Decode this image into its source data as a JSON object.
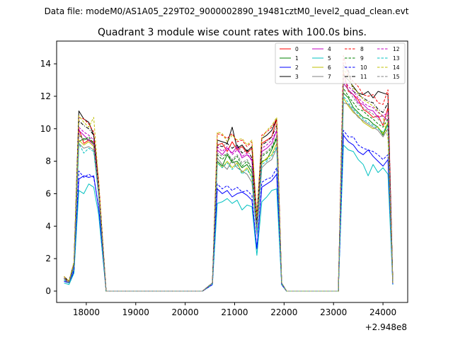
{
  "figure": {
    "suptitle": "Data file: modeM0/AS1A05_229T02_9000002890_19481cztM0_level2_quad_clean.evt"
  },
  "chart_data": {
    "type": "line",
    "title": "Quadrant 3 module wise count rates with 100.0s bins.",
    "xlabel": "",
    "ylabel": "",
    "x_offset_label": "+2.948e8",
    "xlim": [
      17400,
      24500
    ],
    "ylim": [
      -0.7,
      15.4
    ],
    "xticks": [
      18000,
      19000,
      20000,
      21000,
      22000,
      23000,
      24000
    ],
    "xtick_labels": [
      "18000",
      "19000",
      "20000",
      "21000",
      "22000",
      "23000",
      "24000"
    ],
    "yticks": [
      0,
      2,
      4,
      6,
      8,
      10,
      12,
      14
    ],
    "ytick_labels": [
      "0",
      "2",
      "4",
      "6",
      "8",
      "10",
      "12",
      "14"
    ],
    "legend_position": "top-right",
    "x": [
      17550,
      17650,
      17750,
      17850,
      17950,
      18050,
      18150,
      18250,
      18350,
      18450,
      18550,
      18650,
      18750,
      18850,
      18950,
      19050,
      19150,
      19250,
      19350,
      19450,
      19550,
      19650,
      19750,
      19850,
      19950,
      20050,
      20150,
      20250,
      20350,
      20450,
      20550,
      20650,
      20750,
      20850,
      20950,
      21050,
      21150,
      21250,
      21350,
      21450,
      21550,
      21650,
      21750,
      21850,
      21950,
      22050,
      22150,
      22250,
      22350,
      22450,
      22550,
      22650,
      22750,
      22850,
      22950,
      23050,
      23150,
      23250,
      23350,
      23450,
      23550,
      23650,
      23750,
      23850,
      23950,
      24050,
      24150
    ],
    "gap_ranges": [
      [
        18400,
        20350
      ],
      [
        22050,
        23100
      ]
    ],
    "series": [
      {
        "name": "0",
        "color": "#ff0000",
        "dash": "solid",
        "seg1": [
          0.8,
          0.5,
          1.6,
          10.0,
          9.1,
          9.3,
          9.2,
          6.3
        ],
        "seg2": [
          0.5,
          9.0,
          9.1,
          8.6,
          9.2,
          8.7,
          8.9,
          8.5,
          8.8,
          4.2,
          9.1,
          9.3,
          9.5,
          10.6,
          0.5
        ],
        "seg3": [
          0.4,
          13.5,
          12.3,
          12.1,
          11.8,
          11.2,
          11.0,
          10.7,
          10.8,
          10.2,
          11.3,
          0.5
        ]
      },
      {
        "name": "1",
        "color": "#008000",
        "dash": "solid",
        "seg1": [
          0.7,
          0.5,
          1.5,
          9.2,
          9.4,
          9.3,
          9.1,
          6.1
        ],
        "seg2": [
          0.5,
          8.0,
          7.7,
          8.4,
          7.9,
          8.0,
          7.6,
          7.8,
          7.3,
          3.9,
          8.0,
          8.1,
          8.7,
          9.4,
          0.5
        ],
        "seg3": [
          0.3,
          12.2,
          11.9,
          11.3,
          11.0,
          10.7,
          10.6,
          10.3,
          10.1,
          9.6,
          10.3,
          0.5
        ]
      },
      {
        "name": "2",
        "color": "#0000ff",
        "dash": "solid",
        "seg1": [
          0.6,
          0.5,
          1.2,
          6.9,
          7.1,
          7.0,
          7.1,
          5.1
        ],
        "seg2": [
          0.4,
          6.3,
          6.0,
          6.2,
          5.8,
          6.0,
          6.1,
          5.9,
          5.6,
          2.6,
          6.4,
          6.6,
          6.8,
          7.2,
          0.4
        ],
        "seg3": [
          0.3,
          9.6,
          9.2,
          9.0,
          8.6,
          8.4,
          8.7,
          8.3,
          8.0,
          7.7,
          8.1,
          0.4
        ]
      },
      {
        "name": "3",
        "color": "#000000",
        "dash": "solid",
        "seg1": [
          0.9,
          0.6,
          1.7,
          11.1,
          10.6,
          10.4,
          9.6,
          6.6
        ],
        "seg2": [
          0.5,
          9.3,
          9.2,
          9.1,
          10.1,
          8.8,
          9.0,
          8.6,
          8.9,
          4.6,
          9.4,
          9.6,
          9.9,
          10.6,
          0.5
        ],
        "seg3": [
          0.4,
          13.3,
          13.0,
          12.6,
          12.2,
          12.1,
          12.3,
          11.9,
          12.3,
          12.2,
          12.1,
          0.5
        ]
      },
      {
        "name": "4",
        "color": "#c000c0",
        "dash": "solid",
        "seg1": [
          0.8,
          0.5,
          1.6,
          9.9,
          9.6,
          9.3,
          9.0,
          6.3
        ],
        "seg2": [
          0.5,
          8.7,
          8.4,
          8.8,
          8.5,
          8.9,
          8.2,
          8.4,
          8.1,
          4.1,
          8.6,
          8.8,
          9.1,
          9.9,
          0.5
        ],
        "seg3": [
          0.4,
          12.8,
          12.4,
          12.1,
          11.6,
          11.5,
          11.2,
          11.1,
          10.7,
          10.8,
          10.5,
          0.5
        ]
      },
      {
        "name": "5",
        "color": "#00c0c0",
        "dash": "solid",
        "seg1": [
          0.5,
          0.4,
          1.1,
          6.2,
          6.0,
          6.6,
          6.4,
          4.7
        ],
        "seg2": [
          0.4,
          5.4,
          5.5,
          5.7,
          5.4,
          5.6,
          5.0,
          5.3,
          5.2,
          2.2,
          5.5,
          5.8,
          6.2,
          6.3,
          0.4
        ],
        "seg3": [
          0.3,
          9.0,
          8.7,
          8.6,
          8.1,
          7.8,
          7.1,
          7.8,
          7.3,
          7.6,
          7.2,
          0.4
        ]
      },
      {
        "name": "6",
        "color": "#bfbf00",
        "dash": "solid",
        "seg1": [
          0.7,
          0.5,
          1.5,
          9.3,
          9.0,
          9.2,
          8.9,
          6.0
        ],
        "seg2": [
          0.5,
          7.9,
          7.6,
          8.0,
          7.6,
          7.9,
          7.3,
          7.6,
          7.0,
          3.7,
          7.9,
          8.2,
          8.4,
          9.1,
          0.5
        ],
        "seg3": [
          0.3,
          11.9,
          11.4,
          11.0,
          10.8,
          10.4,
          10.2,
          10.0,
          10.1,
          9.7,
          10.4,
          0.5
        ]
      },
      {
        "name": "7",
        "color": "#808080",
        "dash": "solid",
        "seg1": [
          0.7,
          0.5,
          1.4,
          9.1,
          8.8,
          8.9,
          8.7,
          5.9
        ],
        "seg2": [
          0.5,
          8.2,
          7.8,
          7.5,
          8.1,
          7.6,
          7.4,
          7.2,
          6.7,
          3.5,
          7.6,
          7.9,
          8.1,
          8.8,
          0.5
        ],
        "seg3": [
          0.3,
          11.6,
          11.5,
          11.1,
          10.7,
          10.5,
          10.3,
          10.1,
          9.9,
          9.5,
          10.0,
          0.5
        ]
      },
      {
        "name": "8",
        "color": "#ff0000",
        "dash": "dashed",
        "seg1": [
          0.9,
          0.6,
          1.8,
          10.7,
          10.6,
          10.3,
          9.8,
          6.8
        ],
        "seg2": [
          0.5,
          9.7,
          9.6,
          9.4,
          9.7,
          9.2,
          9.3,
          8.9,
          9.2,
          4.5,
          9.6,
          9.8,
          10.1,
          10.6,
          0.5
        ],
        "seg3": [
          0.4,
          14.5,
          13.3,
          12.9,
          12.6,
          12.1,
          12.0,
          12.1,
          11.6,
          11.5,
          12.4,
          0.5
        ]
      },
      {
        "name": "9",
        "color": "#008000",
        "dash": "dashed",
        "seg1": [
          0.8,
          0.5,
          1.6,
          9.7,
          9.3,
          9.5,
          9.1,
          6.2
        ],
        "seg2": [
          0.5,
          8.4,
          8.1,
          8.5,
          8.0,
          8.3,
          7.7,
          8.0,
          7.5,
          3.9,
          8.3,
          8.5,
          8.8,
          9.5,
          0.5
        ],
        "seg3": [
          0.3,
          12.5,
          12.0,
          11.6,
          11.2,
          11.1,
          10.8,
          10.6,
          10.3,
          10.1,
          10.6,
          0.5
        ]
      },
      {
        "name": "10",
        "color": "#0000ff",
        "dash": "dashed",
        "seg1": [
          0.6,
          0.5,
          1.3,
          7.4,
          7.0,
          7.2,
          7.0,
          5.2
        ],
        "seg2": [
          0.4,
          6.6,
          6.3,
          6.5,
          6.2,
          6.4,
          6.1,
          6.2,
          5.9,
          2.6,
          6.7,
          6.9,
          7.0,
          7.6,
          0.4
        ],
        "seg3": [
          0.3,
          9.9,
          9.5,
          9.5,
          9.0,
          8.8,
          8.7,
          8.6,
          8.4,
          8.1,
          8.4,
          0.4
        ]
      },
      {
        "name": "11",
        "color": "#000000",
        "dash": "dashdot",
        "seg1": [
          0.8,
          0.6,
          1.7,
          10.5,
          10.2,
          10.0,
          9.6,
          6.5
        ],
        "seg2": [
          0.5,
          9.0,
          8.9,
          9.1,
          8.8,
          9.0,
          8.5,
          8.7,
          8.2,
          4.2,
          9.0,
          9.2,
          9.5,
          10.2,
          0.5
        ],
        "seg3": [
          0.4,
          13.9,
          13.6,
          12.3,
          12.1,
          11.9,
          11.7,
          11.6,
          11.2,
          11.0,
          11.6,
          0.5
        ]
      },
      {
        "name": "12",
        "color": "#c000c0",
        "dash": "dashed",
        "seg1": [
          0.8,
          0.5,
          1.6,
          10.1,
          9.8,
          9.6,
          9.3,
          6.4
        ],
        "seg2": [
          0.5,
          8.9,
          8.6,
          8.9,
          8.4,
          8.7,
          8.3,
          8.5,
          8.0,
          4.0,
          8.8,
          9.0,
          9.3,
          9.9,
          0.5
        ],
        "seg3": [
          0.4,
          13.1,
          12.6,
          12.3,
          11.9,
          11.6,
          11.4,
          11.3,
          11.0,
          10.8,
          11.0,
          0.5
        ]
      },
      {
        "name": "13",
        "color": "#00c0c0",
        "dash": "dashed",
        "seg1": [
          0.7,
          0.5,
          1.5,
          9.1,
          8.5,
          8.8,
          8.6,
          5.9
        ],
        "seg2": [
          0.5,
          7.9,
          7.6,
          7.9,
          7.5,
          7.8,
          7.2,
          7.5,
          7.0,
          3.6,
          7.8,
          8.0,
          8.3,
          8.9,
          0.5
        ],
        "seg3": [
          0.3,
          12.0,
          11.6,
          11.2,
          10.9,
          10.6,
          10.4,
          10.2,
          10.0,
          9.8,
          10.2,
          0.5
        ]
      },
      {
        "name": "14",
        "color": "#bfbf00",
        "dash": "dashed",
        "seg1": [
          0.9,
          0.6,
          1.8,
          10.8,
          10.4,
          10.1,
          10.7,
          6.7
        ],
        "seg2": [
          0.5,
          9.8,
          9.7,
          9.2,
          9.6,
          9.3,
          9.4,
          9.0,
          9.3,
          4.6,
          9.4,
          9.9,
          10.2,
          10.7,
          0.5
        ],
        "seg3": [
          0.4,
          13.7,
          13.2,
          12.5,
          12.2,
          11.8,
          11.6,
          11.4,
          11.1,
          10.7,
          9.4,
          0.5
        ]
      },
      {
        "name": "15",
        "color": "#808080",
        "dash": "dashed",
        "seg1": [
          0.8,
          0.5,
          1.6,
          9.6,
          9.3,
          9.4,
          9.0,
          6.1
        ],
        "seg2": [
          0.5,
          8.5,
          8.3,
          8.5,
          8.1,
          8.4,
          7.9,
          8.1,
          7.6,
          3.9,
          8.4,
          8.6,
          8.9,
          9.6,
          0.5
        ],
        "seg3": [
          0.3,
          12.9,
          12.4,
          11.9,
          11.5,
          11.3,
          11.1,
          10.9,
          10.6,
          10.3,
          10.9,
          0.5
        ]
      }
    ]
  }
}
